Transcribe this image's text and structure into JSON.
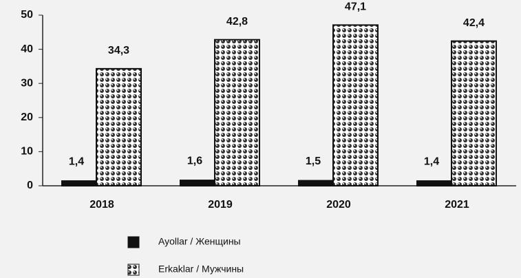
{
  "chart_data": {
    "type": "bar",
    "categories": [
      "2018",
      "2019",
      "2020",
      "2021"
    ],
    "series": [
      {
        "name": "Ayollar / Женщины",
        "color": "#111111",
        "values": [
          1.4,
          1.6,
          1.5,
          1.4
        ],
        "value_labels": [
          "1,4",
          "1,6",
          "1,5",
          "1,4"
        ]
      },
      {
        "name": "Erkaklar / Мужчины",
        "color": "#333333",
        "values": [
          34.3,
          42.8,
          47.1,
          42.4
        ],
        "value_labels": [
          "34,3",
          "42,8",
          "47,1",
          "42,4"
        ]
      }
    ],
    "ylim": [
      0,
      50
    ],
    "yticks": [
      0,
      10,
      20,
      30,
      40,
      50
    ],
    "grid": false
  }
}
